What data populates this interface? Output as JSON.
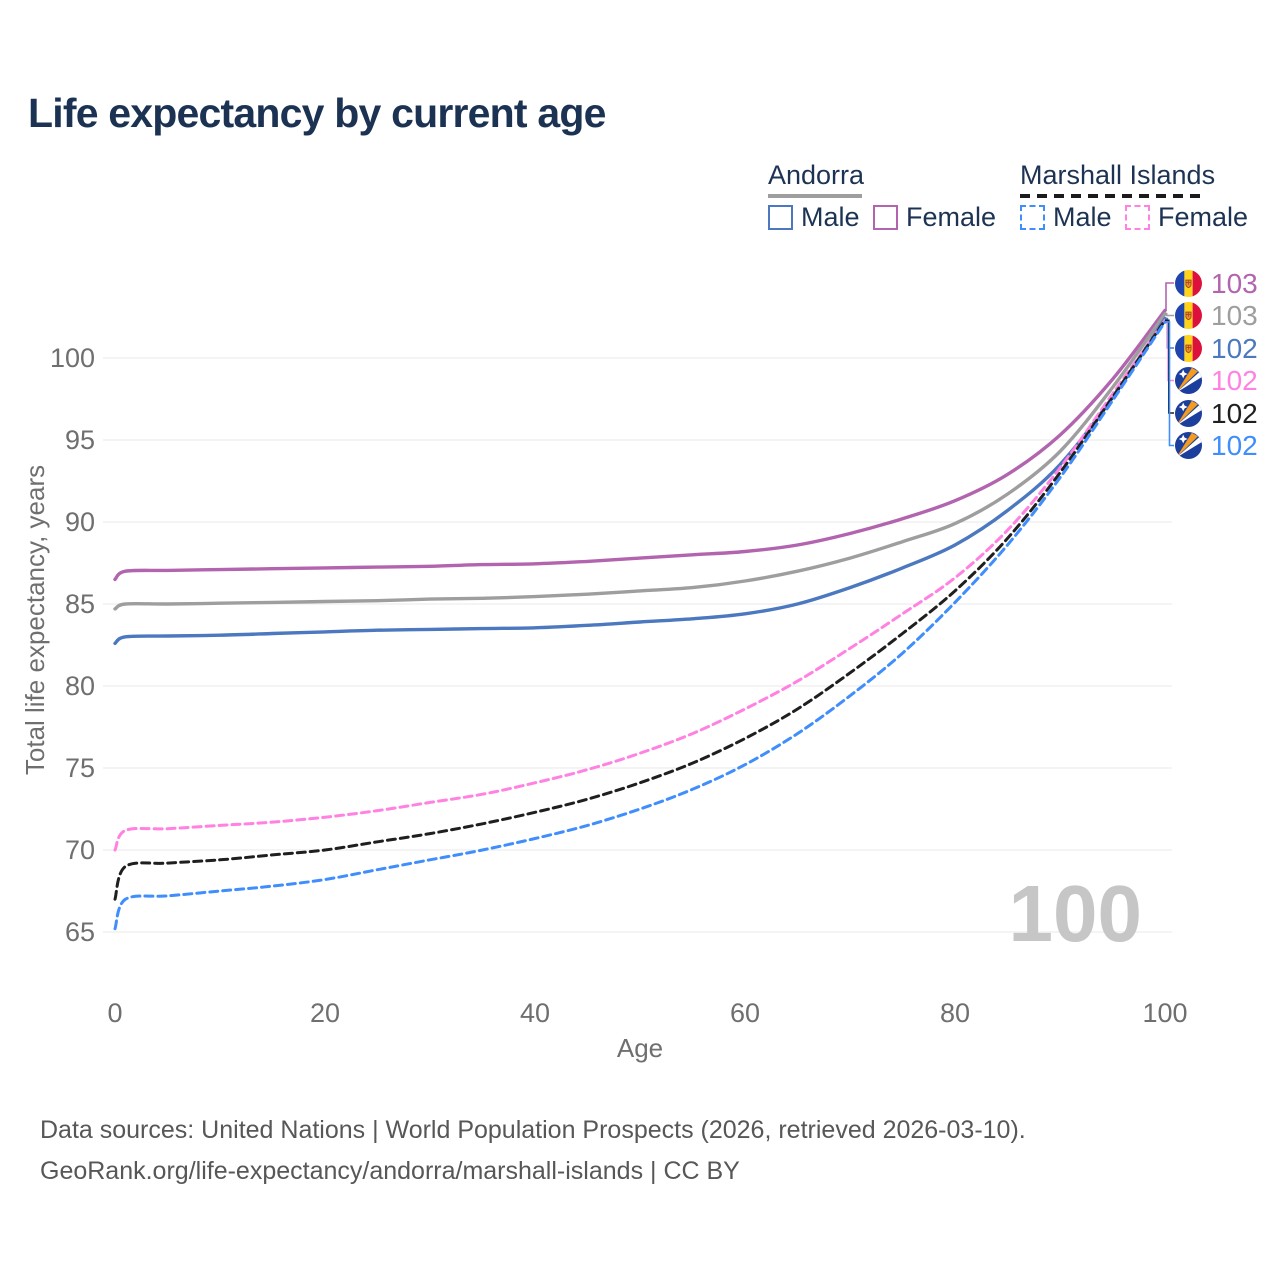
{
  "title": "Life expectancy by current age",
  "legend": {
    "groups": [
      {
        "country": "Andorra",
        "style": "solid",
        "rule_color": "#9e9e9e",
        "items": [
          {
            "label": "Male",
            "color": "#4b78bf"
          },
          {
            "label": "Female",
            "color": "#b264ae"
          }
        ]
      },
      {
        "country": "Marshall Islands",
        "style": "dashed",
        "rule_color": "#1b1b1b",
        "items": [
          {
            "label": "Male",
            "color": "#3f8efc"
          },
          {
            "label": "Female",
            "color": "#ff82e2"
          }
        ]
      }
    ]
  },
  "chart_data": {
    "type": "line",
    "title": "Life expectancy by current age",
    "xlabel": "Age",
    "ylabel": "Total life expectancy, years",
    "xlim": [
      0,
      100
    ],
    "ylim": [
      64,
      104
    ],
    "xticks": [
      0,
      20,
      40,
      60,
      80,
      100
    ],
    "yticks": [
      65,
      70,
      75,
      80,
      85,
      90,
      95,
      100
    ],
    "grid": "horizontal",
    "legend_position": "top-right",
    "watermark": "100",
    "series": [
      {
        "name": "Andorra Female",
        "color": "#b264ae",
        "dashed": false,
        "flag": "andorra",
        "end_label": "103",
        "points": [
          [
            0,
            86.5
          ],
          [
            1,
            87.0
          ],
          [
            5,
            87.05
          ],
          [
            10,
            87.1
          ],
          [
            15,
            87.15
          ],
          [
            20,
            87.2
          ],
          [
            25,
            87.25
          ],
          [
            30,
            87.3
          ],
          [
            35,
            87.4
          ],
          [
            40,
            87.45
          ],
          [
            45,
            87.6
          ],
          [
            50,
            87.8
          ],
          [
            55,
            88.0
          ],
          [
            60,
            88.2
          ],
          [
            65,
            88.6
          ],
          [
            70,
            89.3
          ],
          [
            75,
            90.2
          ],
          [
            80,
            91.3
          ],
          [
            85,
            92.9
          ],
          [
            90,
            95.3
          ],
          [
            95,
            98.7
          ],
          [
            100,
            102.9
          ]
        ]
      },
      {
        "name": "Andorra",
        "color": "#9e9e9e",
        "dashed": false,
        "flag": "andorra",
        "end_label": "103",
        "points": [
          [
            0,
            84.7
          ],
          [
            1,
            85.0
          ],
          [
            5,
            85.0
          ],
          [
            10,
            85.05
          ],
          [
            15,
            85.1
          ],
          [
            20,
            85.15
          ],
          [
            25,
            85.2
          ],
          [
            30,
            85.3
          ],
          [
            35,
            85.35
          ],
          [
            40,
            85.45
          ],
          [
            45,
            85.6
          ],
          [
            50,
            85.8
          ],
          [
            55,
            86.0
          ],
          [
            60,
            86.4
          ],
          [
            65,
            87.0
          ],
          [
            70,
            87.8
          ],
          [
            75,
            88.8
          ],
          [
            80,
            89.9
          ],
          [
            85,
            91.7
          ],
          [
            90,
            94.3
          ],
          [
            95,
            98.2
          ],
          [
            100,
            102.7
          ]
        ]
      },
      {
        "name": "Andorra Male",
        "color": "#4b78bf",
        "dashed": false,
        "flag": "andorra",
        "end_label": "102",
        "points": [
          [
            0,
            82.6
          ],
          [
            1,
            83.0
          ],
          [
            5,
            83.05
          ],
          [
            10,
            83.1
          ],
          [
            15,
            83.2
          ],
          [
            20,
            83.3
          ],
          [
            25,
            83.4
          ],
          [
            30,
            83.45
          ],
          [
            35,
            83.5
          ],
          [
            40,
            83.55
          ],
          [
            45,
            83.7
          ],
          [
            50,
            83.9
          ],
          [
            55,
            84.1
          ],
          [
            60,
            84.4
          ],
          [
            65,
            85.0
          ],
          [
            70,
            86.0
          ],
          [
            75,
            87.2
          ],
          [
            80,
            88.6
          ],
          [
            85,
            90.7
          ],
          [
            90,
            93.5
          ],
          [
            95,
            97.6
          ],
          [
            100,
            102.4
          ]
        ]
      },
      {
        "name": "Marshall Islands Female",
        "color": "#ff82e2",
        "dashed": true,
        "flag": "marshall",
        "end_label": "102",
        "points": [
          [
            0,
            70.0
          ],
          [
            1,
            71.2
          ],
          [
            5,
            71.3
          ],
          [
            10,
            71.5
          ],
          [
            15,
            71.7
          ],
          [
            20,
            72.0
          ],
          [
            25,
            72.4
          ],
          [
            30,
            72.9
          ],
          [
            35,
            73.4
          ],
          [
            40,
            74.1
          ],
          [
            45,
            74.9
          ],
          [
            50,
            75.9
          ],
          [
            55,
            77.1
          ],
          [
            60,
            78.6
          ],
          [
            65,
            80.3
          ],
          [
            70,
            82.3
          ],
          [
            75,
            84.4
          ],
          [
            80,
            86.6
          ],
          [
            85,
            89.5
          ],
          [
            90,
            93.3
          ],
          [
            95,
            97.8
          ],
          [
            100,
            102.3
          ]
        ]
      },
      {
        "name": "Marshall Islands",
        "color": "#1f1f1f",
        "dashed": true,
        "flag": "marshall",
        "end_label": "102",
        "points": [
          [
            0,
            67.0
          ],
          [
            1,
            69.0
          ],
          [
            5,
            69.2
          ],
          [
            10,
            69.4
          ],
          [
            15,
            69.7
          ],
          [
            20,
            70.0
          ],
          [
            25,
            70.5
          ],
          [
            30,
            71.0
          ],
          [
            35,
            71.6
          ],
          [
            40,
            72.3
          ],
          [
            45,
            73.1
          ],
          [
            50,
            74.1
          ],
          [
            55,
            75.3
          ],
          [
            60,
            76.8
          ],
          [
            65,
            78.6
          ],
          [
            70,
            80.8
          ],
          [
            75,
            83.2
          ],
          [
            80,
            85.8
          ],
          [
            85,
            89.0
          ],
          [
            90,
            93.0
          ],
          [
            95,
            97.6
          ],
          [
            100,
            102.3
          ]
        ]
      },
      {
        "name": "Marshall Islands Male",
        "color": "#3f8efc",
        "dashed": true,
        "flag": "marshall",
        "end_label": "102",
        "points": [
          [
            0,
            65.2
          ],
          [
            1,
            67.0
          ],
          [
            5,
            67.2
          ],
          [
            10,
            67.5
          ],
          [
            15,
            67.8
          ],
          [
            20,
            68.2
          ],
          [
            25,
            68.8
          ],
          [
            30,
            69.4
          ],
          [
            35,
            70.0
          ],
          [
            40,
            70.7
          ],
          [
            45,
            71.5
          ],
          [
            50,
            72.5
          ],
          [
            55,
            73.7
          ],
          [
            60,
            75.2
          ],
          [
            65,
            77.1
          ],
          [
            70,
            79.4
          ],
          [
            75,
            82.0
          ],
          [
            80,
            85.1
          ],
          [
            85,
            88.6
          ],
          [
            90,
            92.7
          ],
          [
            95,
            97.4
          ],
          [
            100,
            102.2
          ]
        ]
      }
    ]
  },
  "footer": {
    "line1": "Data sources: United Nations | World Population Prospects (2026, retrieved 2026-03-10).",
    "line2": "GeoRank.org/life-expectancy/andorra/marshall-islands | CC BY"
  }
}
